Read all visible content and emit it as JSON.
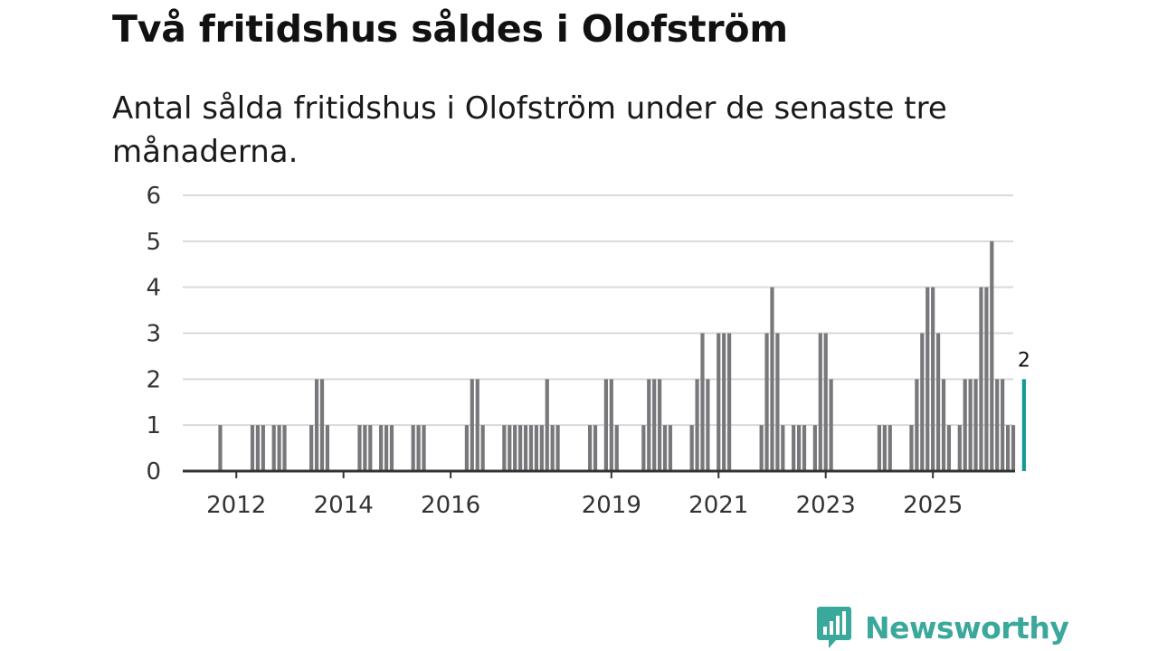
{
  "title": "Två fritidshus såldes i Olofström",
  "subtitle": "Antal sålda fritidshus i Olofström under de senaste tre månaderna.",
  "brand": {
    "name": "Newsworthy",
    "icon": "newsworthy-logo-icon"
  },
  "colors": {
    "bar": "#78777b",
    "highlight": "#139a96",
    "grid": "#d9d9d9",
    "axis": "#333333",
    "brand": "#3aa89b"
  },
  "chart_data": {
    "type": "bar",
    "title": "Två fritidshus såldes i Olofström",
    "subtitle": "Antal sålda fritidshus i Olofström under de senaste tre månaderna.",
    "xlabel": "",
    "ylabel": "",
    "ylim": [
      0,
      6
    ],
    "yticks": [
      "0",
      "1",
      "2",
      "3",
      "4",
      "5",
      "6"
    ],
    "xlim": [
      2011.0,
      2026.5
    ],
    "xticks": [
      {
        "label": "2012",
        "value": 2012
      },
      {
        "label": "2014",
        "value": 2014
      },
      {
        "label": "2016",
        "value": 2016
      },
      {
        "label": "2019",
        "value": 2019
      },
      {
        "label": "2021",
        "value": 2021
      },
      {
        "label": "2023",
        "value": 2023
      },
      {
        "label": "2025",
        "value": 2025
      }
    ],
    "grid": true,
    "highlight_label": "2",
    "series": [
      {
        "name": "Antal sålda fritidshus",
        "points": [
          [
            2011.7,
            1
          ],
          [
            2012.3,
            1
          ],
          [
            2012.4,
            1
          ],
          [
            2012.5,
            1
          ],
          [
            2012.7,
            1
          ],
          [
            2012.8,
            1
          ],
          [
            2012.9,
            1
          ],
          [
            2013.4,
            1
          ],
          [
            2013.5,
            2
          ],
          [
            2013.6,
            2
          ],
          [
            2013.7,
            1
          ],
          [
            2014.3,
            1
          ],
          [
            2014.4,
            1
          ],
          [
            2014.5,
            1
          ],
          [
            2014.7,
            1
          ],
          [
            2014.8,
            1
          ],
          [
            2014.9,
            1
          ],
          [
            2015.3,
            1
          ],
          [
            2015.4,
            1
          ],
          [
            2015.5,
            1
          ],
          [
            2016.3,
            1
          ],
          [
            2016.4,
            2
          ],
          [
            2016.5,
            2
          ],
          [
            2016.6,
            1
          ],
          [
            2017.0,
            1
          ],
          [
            2017.1,
            1
          ],
          [
            2017.2,
            1
          ],
          [
            2017.3,
            1
          ],
          [
            2017.4,
            1
          ],
          [
            2017.5,
            1
          ],
          [
            2017.6,
            1
          ],
          [
            2017.7,
            1
          ],
          [
            2017.8,
            2
          ],
          [
            2017.9,
            1
          ],
          [
            2018.0,
            1
          ],
          [
            2018.6,
            1
          ],
          [
            2018.7,
            1
          ],
          [
            2018.9,
            2
          ],
          [
            2019.0,
            2
          ],
          [
            2019.1,
            1
          ],
          [
            2019.6,
            1
          ],
          [
            2019.7,
            2
          ],
          [
            2019.8,
            2
          ],
          [
            2019.9,
            2
          ],
          [
            2020.0,
            1
          ],
          [
            2020.1,
            1
          ],
          [
            2020.5,
            1
          ],
          [
            2020.6,
            2
          ],
          [
            2020.7,
            3
          ],
          [
            2020.8,
            2
          ],
          [
            2021.0,
            3
          ],
          [
            2021.1,
            3
          ],
          [
            2021.2,
            3
          ],
          [
            2021.8,
            1
          ],
          [
            2021.9,
            3
          ],
          [
            2022.0,
            4
          ],
          [
            2022.1,
            3
          ],
          [
            2022.2,
            1
          ],
          [
            2022.4,
            1
          ],
          [
            2022.5,
            1
          ],
          [
            2022.6,
            1
          ],
          [
            2022.8,
            1
          ],
          [
            2022.9,
            3
          ],
          [
            2023.0,
            3
          ],
          [
            2023.1,
            2
          ],
          [
            2024.0,
            1
          ],
          [
            2024.1,
            1
          ],
          [
            2024.2,
            1
          ],
          [
            2024.6,
            1
          ],
          [
            2024.7,
            2
          ],
          [
            2024.8,
            3
          ],
          [
            2024.9,
            4
          ],
          [
            2025.0,
            4
          ],
          [
            2025.1,
            3
          ],
          [
            2025.2,
            2
          ],
          [
            2025.3,
            1
          ],
          [
            2025.5,
            1
          ],
          [
            2025.6,
            2
          ],
          [
            2025.7,
            2
          ],
          [
            2025.8,
            2
          ],
          [
            2025.9,
            4
          ],
          [
            2026.0,
            4
          ],
          [
            2026.1,
            5
          ],
          [
            2026.2,
            2
          ],
          [
            2026.3,
            2
          ],
          [
            2026.4,
            1
          ],
          [
            2026.5,
            1
          ],
          [
            2026.7,
            2
          ]
        ],
        "highlight_index": 87
      }
    ]
  }
}
